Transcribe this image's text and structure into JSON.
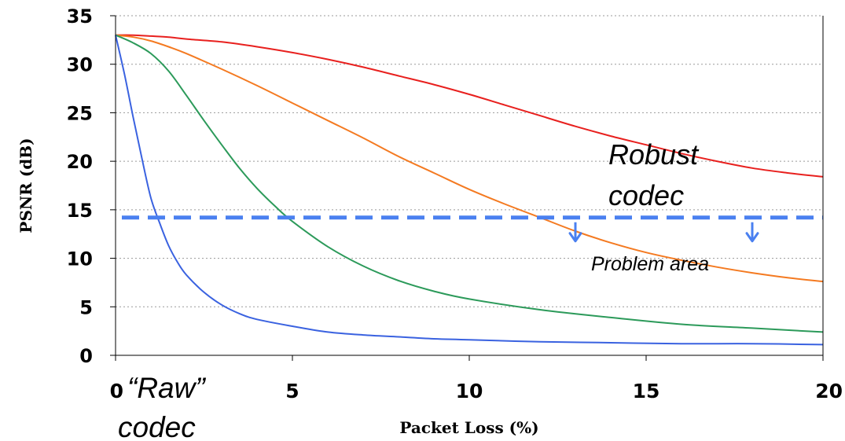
{
  "chart_data": {
    "type": "line",
    "title": "",
    "xlabel": "Packet Loss (%)",
    "ylabel": "PSNR (dB)",
    "xlim": [
      0,
      20
    ],
    "ylim": [
      0,
      35
    ],
    "x_ticks": [
      0,
      5,
      10,
      15,
      20
    ],
    "y_ticks": [
      0,
      5,
      10,
      15,
      20,
      25,
      30,
      35
    ],
    "grid": "horizontal dotted",
    "series": [
      {
        "color": "#e8201e",
        "points": [
          [
            0,
            33
          ],
          [
            0.5,
            33
          ],
          [
            1,
            32.9
          ],
          [
            1.5,
            32.8
          ],
          [
            2,
            32.6
          ],
          [
            3,
            32.3
          ],
          [
            4,
            31.8
          ],
          [
            5,
            31.2
          ],
          [
            6,
            30.5
          ],
          [
            7,
            29.7
          ],
          [
            8,
            28.8
          ],
          [
            9,
            27.9
          ],
          [
            10,
            26.9
          ],
          [
            11,
            25.8
          ],
          [
            12,
            24.7
          ],
          [
            13,
            23.6
          ],
          [
            14,
            22.6
          ],
          [
            15,
            21.7
          ],
          [
            16,
            20.8
          ],
          [
            17,
            20.0
          ],
          [
            18,
            19.3
          ],
          [
            19,
            18.8
          ],
          [
            20,
            18.4
          ]
        ]
      },
      {
        "color": "#f47a21",
        "points": [
          [
            0,
            33
          ],
          [
            0.5,
            32.8
          ],
          [
            1,
            32.4
          ],
          [
            1.5,
            31.8
          ],
          [
            2,
            31.1
          ],
          [
            3,
            29.5
          ],
          [
            4,
            27.8
          ],
          [
            5,
            26
          ],
          [
            6,
            24.2
          ],
          [
            7,
            22.4
          ],
          [
            8,
            20.5
          ],
          [
            9,
            18.8
          ],
          [
            10,
            17.1
          ],
          [
            11,
            15.6
          ],
          [
            12,
            14.2
          ],
          [
            13,
            12.8
          ],
          [
            14,
            11.6
          ],
          [
            15,
            10.6
          ],
          [
            16,
            9.8
          ],
          [
            17,
            9.1
          ],
          [
            18,
            8.5
          ],
          [
            19,
            8
          ],
          [
            20,
            7.6
          ]
        ]
      },
      {
        "color": "#2c9a5a",
        "points": [
          [
            0,
            33
          ],
          [
            0.5,
            32.2
          ],
          [
            1,
            31.1
          ],
          [
            1.5,
            29.3
          ],
          [
            2,
            26.8
          ],
          [
            2.5,
            24.2
          ],
          [
            3,
            21.7
          ],
          [
            3.5,
            19.3
          ],
          [
            4,
            17.2
          ],
          [
            4.5,
            15.4
          ],
          [
            5,
            13.8
          ],
          [
            6,
            11.2
          ],
          [
            7,
            9.2
          ],
          [
            8,
            7.7
          ],
          [
            9,
            6.6
          ],
          [
            10,
            5.8
          ],
          [
            12,
            4.7
          ],
          [
            14,
            3.9
          ],
          [
            16,
            3.2
          ],
          [
            18,
            2.8
          ],
          [
            20,
            2.4
          ]
        ]
      },
      {
        "color": "#3a62e0",
        "points": [
          [
            0,
            33
          ],
          [
            0.25,
            29
          ],
          [
            0.5,
            24.5
          ],
          [
            0.75,
            20.2
          ],
          [
            1,
            16.2
          ],
          [
            1.25,
            13.6
          ],
          [
            1.5,
            11.3
          ],
          [
            1.75,
            9.6
          ],
          [
            2,
            8.3
          ],
          [
            2.5,
            6.5
          ],
          [
            3,
            5.2
          ],
          [
            3.5,
            4.3
          ],
          [
            4,
            3.7
          ],
          [
            5,
            3
          ],
          [
            6,
            2.4
          ],
          [
            7,
            2.1
          ],
          [
            8,
            1.9
          ],
          [
            9,
            1.7
          ],
          [
            10,
            1.6
          ],
          [
            12,
            1.4
          ],
          [
            14,
            1.3
          ],
          [
            16,
            1.2
          ],
          [
            18,
            1.2
          ],
          [
            20,
            1.1
          ]
        ]
      }
    ],
    "threshold": {
      "y": 14.2,
      "color": "#4a80f0",
      "arrows_at_x": [
        13,
        18
      ]
    },
    "annotations": {
      "robust_1": "Robust",
      "robust_2": "codec",
      "problem": "Problem area",
      "raw_1": "“Raw”",
      "raw_2": "codec"
    }
  }
}
